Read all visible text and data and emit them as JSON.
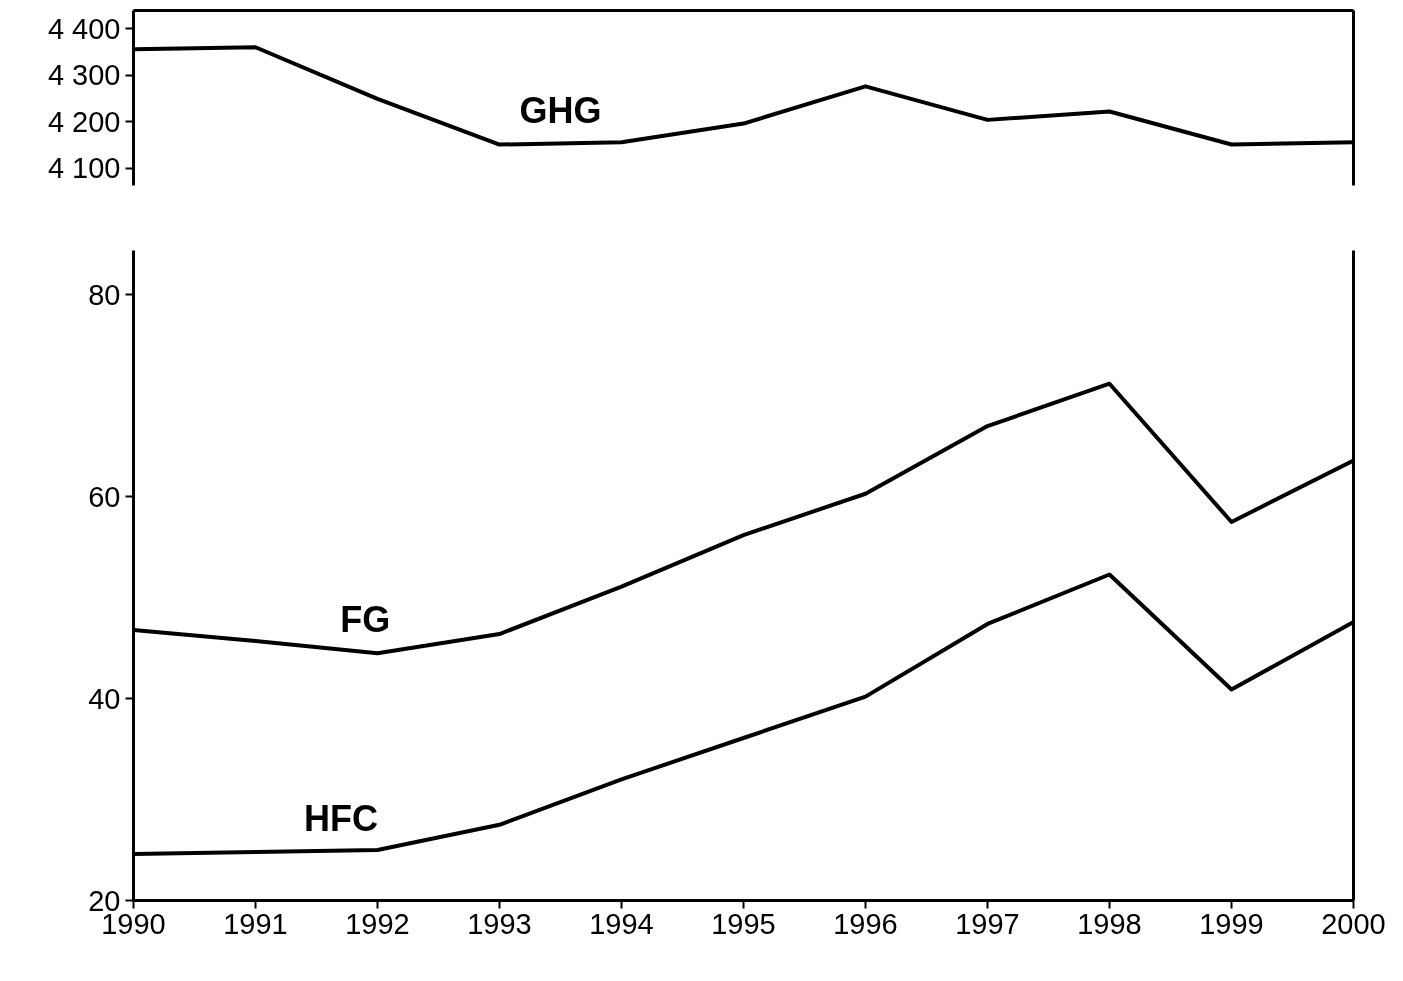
{
  "chart_data": [
    {
      "type": "line",
      "x": [
        1990,
        1991,
        1992,
        1993,
        1994,
        1995,
        1996,
        1997,
        1998,
        1999,
        2000
      ],
      "xlim": [
        1990,
        2000
      ],
      "xticks": [
        1990,
        1991,
        1992,
        1993,
        1994,
        1995,
        1996,
        1997,
        1998,
        1999,
        2000
      ],
      "ylim": [
        4063,
        4439
      ],
      "yticks": [
        {
          "value": 4100,
          "label": "4 100"
        },
        {
          "value": 4200,
          "label": "4 200"
        },
        {
          "value": 4300,
          "label": "4 300"
        },
        {
          "value": 4400,
          "label": "4 400"
        }
      ],
      "tick_labels": "y",
      "grid": false,
      "line_style": "solid",
      "series": [
        {
          "name": "GHG",
          "color": "#000000",
          "values": [
            4356,
            4360,
            4249,
            4151,
            4156,
            4196,
            4276,
            4204,
            4222,
            4151,
            4156
          ]
        }
      ]
    },
    {
      "type": "line",
      "x": [
        1990,
        1991,
        1992,
        1993,
        1994,
        1995,
        1996,
        1997,
        1998,
        1999,
        2000
      ],
      "xlim": [
        1990,
        2000
      ],
      "xticks": [
        1990,
        1991,
        1992,
        1993,
        1994,
        1995,
        1996,
        1997,
        1998,
        1999,
        2000
      ],
      "ylim": [
        20,
        84.4
      ],
      "yticks": [
        20,
        40,
        60,
        80
      ],
      "grid": false,
      "line_style": "solid",
      "series": [
        {
          "name": "FG",
          "color": "#000000",
          "values": [
            46.8,
            45.7,
            44.5,
            46.4,
            51.1,
            56.2,
            60.3,
            67.0,
            71.2,
            57.5,
            63.6
          ]
        },
        {
          "name": "HFC",
          "color": "#000000",
          "values": [
            24.6,
            24.8,
            25.0,
            27.5,
            32.0,
            36.1,
            40.2,
            47.4,
            52.3,
            40.9,
            47.6
          ]
        }
      ]
    }
  ]
}
